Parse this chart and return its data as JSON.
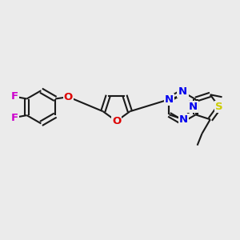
{
  "bg_color": "#ebebeb",
  "bond_color": "#1a1a1a",
  "bond_width": 1.5,
  "dbo": 0.012,
  "atom_colors": {
    "N": "#0000ee",
    "O": "#dd0000",
    "S": "#cccc00",
    "F": "#cc00cc"
  },
  "font_size": 9.5,
  "figsize": [
    3.0,
    3.0
  ],
  "dpi": 100
}
